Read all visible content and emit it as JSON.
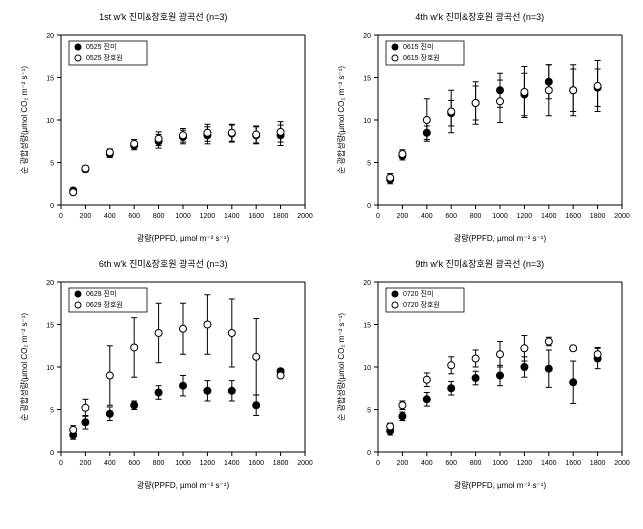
{
  "global": {
    "background_color": "#ffffff",
    "axis_color": "#000000",
    "tick_color": "#000000",
    "text_color": "#000000",
    "marker_fill_solid": "#000000",
    "marker_fill_open": "#ffffff",
    "marker_stroke": "#000000",
    "error_bar_color": "#000000",
    "legend_border": "#000000",
    "font_family": "Arial",
    "title_fontsize": 9,
    "axis_label_fontsize": 8,
    "tick_fontsize": 7,
    "legend_fontsize": 7,
    "xlim": [
      0,
      2000
    ],
    "ylim": [
      0,
      20
    ],
    "xtick_step": 200,
    "ytick_step": 5,
    "xlabel": "광량(PPFD, µmol m⁻² s⁻¹)",
    "ylabel": "순 광합성량(µmol CO₂ m⁻² s⁻¹)",
    "marker_size": 3.5,
    "error_cap_width": 3
  },
  "panels": [
    {
      "id": "p1",
      "title": "1st w'k 진미&장호원 광곡선 (n=3)",
      "legend": [
        "0525 진미",
        "0525 장호원"
      ],
      "x": [
        100,
        200,
        400,
        600,
        800,
        1000,
        1200,
        1400,
        1600,
        1800
      ],
      "series": [
        {
          "style": "solid",
          "y": [
            1.7,
            4.2,
            6.0,
            7.0,
            7.5,
            8.0,
            8.2,
            8.4,
            8.2,
            8.2
          ],
          "elo": [
            0.3,
            0.3,
            0.4,
            0.5,
            0.8,
            0.8,
            1.0,
            1.0,
            1.0,
            1.2
          ],
          "ehi": [
            0.3,
            0.3,
            0.4,
            0.5,
            0.8,
            0.8,
            1.0,
            1.0,
            1.0,
            1.2
          ]
        },
        {
          "style": "open",
          "y": [
            1.5,
            4.3,
            6.2,
            7.2,
            7.8,
            8.2,
            8.5,
            8.5,
            8.3,
            8.6
          ],
          "elo": [
            0.3,
            0.3,
            0.4,
            0.5,
            0.8,
            0.8,
            1.0,
            1.0,
            1.0,
            1.2
          ],
          "ehi": [
            0.3,
            0.3,
            0.4,
            0.5,
            0.8,
            0.8,
            1.0,
            1.0,
            1.0,
            1.2
          ]
        }
      ]
    },
    {
      "id": "p2",
      "title": "4th w'k 진미&장호원 광곡선 (n=3)",
      "legend": [
        "0615 진미",
        "0615 장호원"
      ],
      "x": [
        100,
        200,
        400,
        600,
        800,
        1000,
        1200,
        1400,
        1600,
        1800
      ],
      "series": [
        {
          "style": "solid",
          "y": [
            3.0,
            5.8,
            8.5,
            10.8,
            12.0,
            13.5,
            13.0,
            14.5,
            13.5,
            13.8
          ],
          "elo": [
            0.5,
            0.5,
            0.8,
            1.5,
            2.0,
            2.0,
            2.5,
            2.0,
            2.5,
            2.2
          ],
          "ehi": [
            0.5,
            0.5,
            0.8,
            1.5,
            2.0,
            2.0,
            2.5,
            2.0,
            2.5,
            2.2
          ]
        },
        {
          "style": "open",
          "y": [
            3.2,
            6.0,
            10.0,
            11.0,
            12.0,
            12.2,
            13.3,
            13.5,
            13.5,
            14.0
          ],
          "elo": [
            0.5,
            0.5,
            2.5,
            2.5,
            2.5,
            2.5,
            3.0,
            3.0,
            3.0,
            3.0
          ],
          "ehi": [
            0.5,
            0.5,
            2.5,
            2.5,
            2.5,
            2.5,
            3.0,
            3.0,
            3.0,
            3.0
          ]
        }
      ]
    },
    {
      "id": "p3",
      "title": "6th w'k 진미&장호원 광곡선 (n=3)",
      "legend": [
        "0629 진미",
        "0629 장호원"
      ],
      "x": [
        100,
        200,
        400,
        600,
        800,
        1000,
        1200,
        1400,
        1600,
        1800
      ],
      "series": [
        {
          "style": "solid",
          "y": [
            2.0,
            3.5,
            4.5,
            5.5,
            7.0,
            7.8,
            7.2,
            7.2,
            5.5,
            9.5
          ],
          "elo": [
            0.5,
            0.8,
            0.8,
            0.5,
            0.8,
            1.2,
            1.2,
            1.2,
            1.2,
            0.3
          ],
          "ehi": [
            0.5,
            0.8,
            0.8,
            0.5,
            0.8,
            1.2,
            1.2,
            1.2,
            1.2,
            0.3
          ]
        },
        {
          "style": "open",
          "y": [
            2.6,
            5.2,
            9.0,
            12.3,
            14.0,
            14.5,
            15.0,
            14.0,
            11.2,
            9.0
          ],
          "elo": [
            0.5,
            1.0,
            3.5,
            3.5,
            3.5,
            3.0,
            3.5,
            4.0,
            4.5,
            0.3
          ],
          "ehi": [
            0.5,
            1.0,
            3.5,
            3.5,
            3.5,
            3.0,
            3.5,
            4.0,
            4.5,
            0.3
          ]
        }
      ]
    },
    {
      "id": "p4",
      "title": "9th w'k 진미&장호원 광곡선 (n=3)",
      "legend": [
        "0720 진미",
        "0720 장호원"
      ],
      "x": [
        100,
        200,
        400,
        600,
        800,
        1000,
        1200,
        1400,
        1600,
        1800
      ],
      "series": [
        {
          "style": "solid",
          "y": [
            2.5,
            4.2,
            6.2,
            7.5,
            8.7,
            9.0,
            10.0,
            9.8,
            8.2,
            11.0
          ],
          "elo": [
            0.5,
            0.5,
            0.8,
            0.8,
            0.8,
            1.2,
            1.2,
            2.2,
            2.5,
            1.2
          ],
          "ehi": [
            0.5,
            0.5,
            0.8,
            0.8,
            0.8,
            1.2,
            1.2,
            2.2,
            2.5,
            1.2
          ]
        },
        {
          "style": "open",
          "y": [
            3.0,
            5.5,
            8.5,
            10.2,
            11.0,
            11.5,
            12.2,
            13.0,
            12.2,
            11.5
          ],
          "elo": [
            0.4,
            0.5,
            0.8,
            1.0,
            1.0,
            1.5,
            1.5,
            0.5,
            0.3,
            0.8
          ],
          "ehi": [
            0.4,
            0.5,
            0.8,
            1.0,
            1.0,
            1.5,
            1.5,
            0.5,
            0.3,
            0.8
          ]
        }
      ]
    }
  ]
}
